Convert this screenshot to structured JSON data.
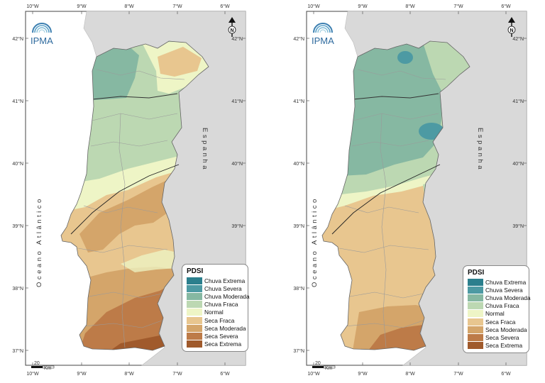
{
  "maps": [
    {
      "logo_text": "IPMA",
      "lon_ticks": [
        "10°W",
        "9°W",
        "8°W",
        "7°W",
        "6°W"
      ],
      "lat_ticks": [
        "42°N",
        "41°N",
        "40°N",
        "39°N",
        "38°N",
        "37°N"
      ],
      "sea_label": "Oceano Atlântico",
      "country_label": "Espanha",
      "scale_label": "20",
      "scale_unit": "Km",
      "north_label": "N"
    },
    {
      "logo_text": "IPMA",
      "lon_ticks": [
        "10°W",
        "9°W",
        "8°W",
        "7°W",
        "6°W"
      ],
      "lat_ticks": [
        "42°N",
        "41°N",
        "40°N",
        "39°N",
        "38°N",
        "37°N"
      ],
      "sea_label": "Oceano Atlântico",
      "country_label": "Espanha",
      "scale_label": "20",
      "scale_unit": "Km",
      "north_label": "N"
    }
  ],
  "legend": {
    "title": "PDSI",
    "items": [
      {
        "label": "Chuva Extrema",
        "color": "#2b7f8d"
      },
      {
        "label": "Chuva Severa",
        "color": "#4d9aa3"
      },
      {
        "label": "Chuva Moderada",
        "color": "#86b8a2"
      },
      {
        "label": "Chuva Fraca",
        "color": "#bcd8b2"
      },
      {
        "label": "Normal",
        "color": "#eef5c6"
      },
      {
        "label": "Seca Fraca",
        "color": "#e8c68f"
      },
      {
        "label": "Seca Moderada",
        "color": "#d4a56a"
      },
      {
        "label": "Seca Severa",
        "color": "#bd7b48"
      },
      {
        "label": "Seca Extrema",
        "color": "#a05a2c"
      }
    ]
  }
}
